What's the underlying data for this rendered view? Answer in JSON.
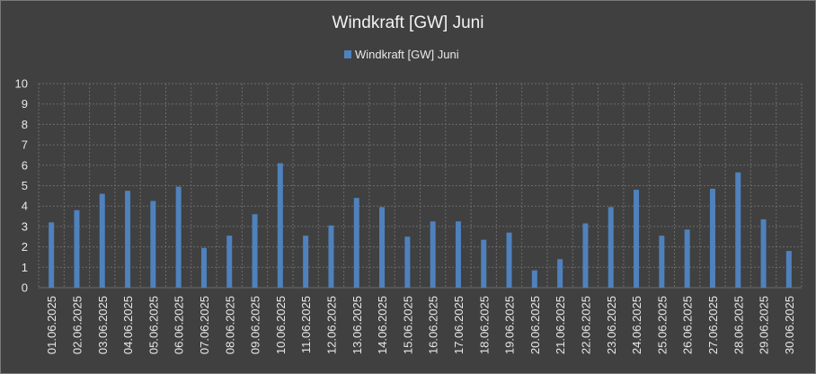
{
  "chart_data": {
    "type": "bar",
    "title": "Windkraft  [GW] Juni",
    "xlabel": "",
    "ylabel": "",
    "ylim": [
      0,
      10
    ],
    "yticks": [
      0,
      1,
      2,
      3,
      4,
      5,
      6,
      7,
      8,
      9,
      10
    ],
    "grid": "vertical and horizontal, dashed",
    "legend_position": "top",
    "categories": [
      "01.06.2025",
      "02.06.2025",
      "03.06.2025",
      "04.06.2025",
      "05.06.2025",
      "06.06.2025",
      "07.06.2025",
      "08.06.2025",
      "09.06.2025",
      "10.06.2025",
      "11.06.2025",
      "12.06.2025",
      "13.06.2025",
      "14.06.2025",
      "15.06.2025",
      "16.06.2025",
      "17.06.2025",
      "18.06.2025",
      "19.06.2025",
      "20.06.2025",
      "21.06.2025",
      "22.06.2025",
      "23.06.2025",
      "24.06.2025",
      "25.06.2025",
      "26.06.2025",
      "27.06.2025",
      "28.06.2025",
      "29.06.2025",
      "30.06.2025"
    ],
    "series": [
      {
        "name": "Windkraft [GW] Juni",
        "color": "#4f81bd",
        "values": [
          3.2,
          3.8,
          4.6,
          4.75,
          4.25,
          4.95,
          1.95,
          2.55,
          3.6,
          6.1,
          2.55,
          3.05,
          4.4,
          3.95,
          2.5,
          3.25,
          3.25,
          2.35,
          2.7,
          0.85,
          1.4,
          3.15,
          3.95,
          4.8,
          2.55,
          2.85,
          4.85,
          5.65,
          3.35,
          1.8
        ]
      }
    ]
  }
}
